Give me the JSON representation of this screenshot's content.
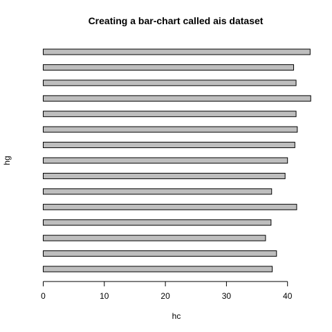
{
  "chart_data": {
    "type": "bar",
    "orientation": "horizontal",
    "title": "Creating a bar-chart called ais dataset",
    "xlabel": "hc",
    "ylabel": "hg",
    "xlim": [
      0,
      44
    ],
    "x_ticks": [
      0,
      10,
      20,
      30,
      40
    ],
    "values": [
      37.5,
      38.2,
      36.4,
      37.3,
      41.5,
      37.4,
      39.6,
      40.0,
      41.2,
      41.6,
      41.4,
      43.8,
      41.4,
      41.0,
      43.7
    ],
    "grid": false,
    "bar_fill": "#bebebe",
    "bar_stroke": "#000000"
  }
}
